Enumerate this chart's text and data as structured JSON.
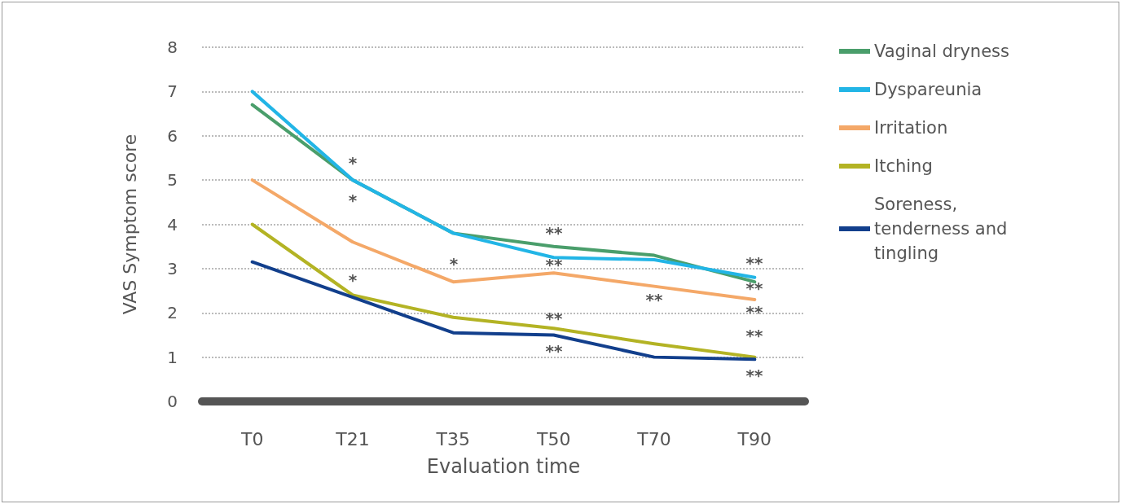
{
  "chart_data": {
    "type": "line",
    "xlabel": "Evaluation time",
    "ylabel": "VAS Symptom score",
    "categories": [
      "T0",
      "T21",
      "T35",
      "T50",
      "T70",
      "T90"
    ],
    "series": [
      {
        "name": "Vaginal dryness",
        "color": "#4a9e6b",
        "values": [
          6.7,
          5.0,
          3.8,
          3.5,
          3.3,
          2.7
        ]
      },
      {
        "name": "Dyspareunia",
        "color": "#22b5e6",
        "values": [
          7.0,
          5.0,
          3.8,
          3.25,
          3.2,
          2.8
        ]
      },
      {
        "name": "Irritation",
        "color": "#f4a868",
        "values": [
          5.0,
          3.6,
          2.7,
          2.9,
          2.6,
          2.3
        ]
      },
      {
        "name": "Itching",
        "color": "#b3b324",
        "values": [
          4.0,
          2.4,
          1.9,
          1.65,
          1.3,
          1.0
        ]
      },
      {
        "name": "Soreness, tenderness and tingling",
        "color": "#123f8c",
        "values": [
          3.15,
          2.35,
          1.55,
          1.5,
          1.0,
          0.95
        ]
      }
    ],
    "ylim": [
      0,
      8
    ],
    "yticks": [
      0,
      1,
      2,
      3,
      4,
      5,
      6,
      7,
      8
    ],
    "grid": "y",
    "legend": "right",
    "marker": "none",
    "line_style": "solid",
    "annotations": [
      "*",
      "*",
      "*",
      "*",
      "**",
      "**",
      "**",
      "**",
      "**",
      "**",
      "**",
      "**",
      "**",
      "**"
    ]
  }
}
